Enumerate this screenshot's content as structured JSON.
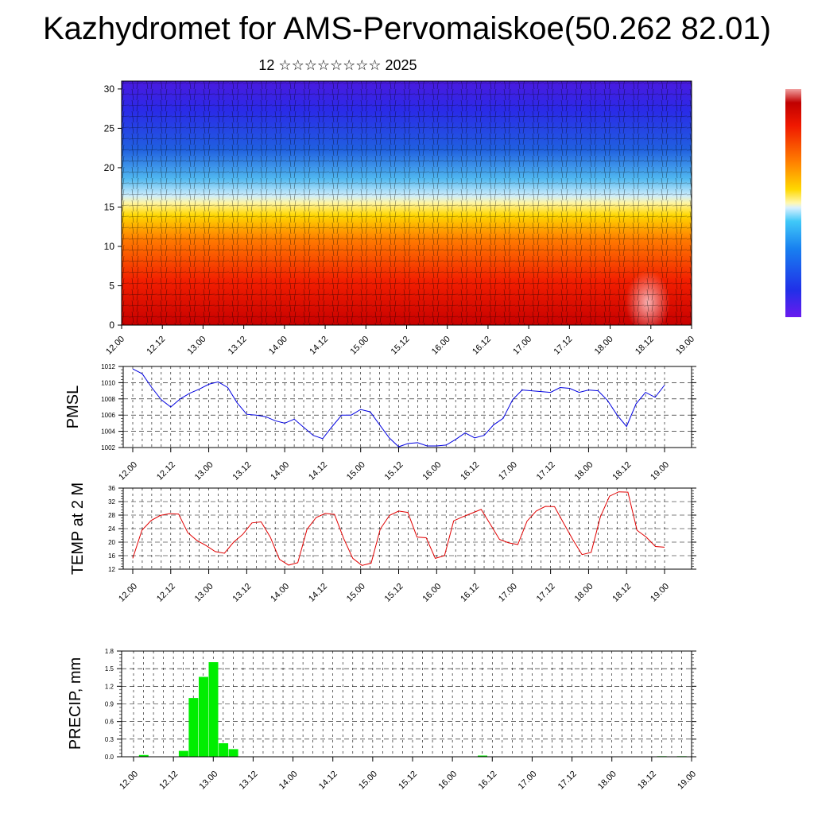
{
  "title": "Kazhydromet for AMS-Pervomaiskoe(50.262 82.01)",
  "subtitle": "12 ☆☆☆☆☆☆☆☆ 2025",
  "time_labels": [
    "12.00",
    "12.12",
    "13.00",
    "13.12",
    "14.00",
    "14.12",
    "15.00",
    "15.12",
    "16.00",
    "16.12",
    "17.00",
    "17.12",
    "18.00",
    "18.12",
    "19.00"
  ],
  "colors": {
    "pmsl_line": "#0000e0",
    "temp_line": "#e00000",
    "precip_bar": "#00ee00"
  },
  "chart_data": [
    {
      "type": "heatmap",
      "title": "",
      "xlabel": "",
      "ylabel": "",
      "x": [
        "12.00",
        "12.12",
        "13.00",
        "13.12",
        "14.00",
        "14.12",
        "15.00",
        "15.12",
        "16.00",
        "16.12",
        "17.00",
        "17.12",
        "18.00",
        "18.12",
        "19.00"
      ],
      "yticks": [
        0,
        5,
        10,
        15,
        20,
        25,
        30
      ],
      "ylim": [
        0,
        31
      ],
      "colorscale": "red-yellow-blue (warm at low levels, cold at high levels)",
      "overlay": "wind vectors"
    },
    {
      "type": "line",
      "ylabel": "PMSL",
      "ylim": [
        1002,
        1012
      ],
      "yticks": [
        1002,
        1004,
        1006,
        1008,
        1010,
        1012
      ],
      "x_labels": [
        "12.00",
        "12.12",
        "13.00",
        "13.12",
        "14.00",
        "14.12",
        "15.00",
        "15.12",
        "16.00",
        "16.12",
        "17.00",
        "17.12",
        "18.00",
        "18.12",
        "19.00"
      ],
      "series": [
        {
          "values": [
            1011.7,
            1011.1,
            1009.4,
            1007.9,
            1007.0,
            1008.0,
            1008.7,
            1009.2,
            1009.8,
            1010.1,
            1009.4,
            1007.5,
            1006.1,
            1006.0,
            1005.8,
            1005.3,
            1005.0,
            1005.5,
            1004.5,
            1003.5,
            1003.1,
            1004.6,
            1006.0,
            1006.0,
            1006.7,
            1006.4,
            1004.8,
            1003.2,
            1002.1,
            1002.5,
            1002.6,
            1002.2,
            1002.2,
            1002.3,
            1003.0,
            1003.8,
            1003.2,
            1003.5,
            1004.8,
            1005.6,
            1007.9,
            1009.1,
            1009.0,
            1008.9,
            1008.8,
            1009.4,
            1009.3,
            1008.8,
            1009.1,
            1009.0,
            1007.8,
            1006.0,
            1004.6,
            1007.4,
            1008.8,
            1008.2,
            1009.7
          ]
        }
      ]
    },
    {
      "type": "line",
      "ylabel": "TEMP at 2 M",
      "ylim": [
        12,
        36
      ],
      "yticks": [
        12,
        16,
        20,
        24,
        28,
        32,
        36
      ],
      "x_labels": [
        "12.00",
        "12.12",
        "13.00",
        "13.12",
        "14.00",
        "14.12",
        "15.00",
        "15.12",
        "16.00",
        "16.12",
        "17.00",
        "17.12",
        "18.00",
        "18.12",
        "19.00"
      ],
      "series": [
        {
          "values": [
            15.2,
            23.5,
            26.4,
            27.9,
            28.4,
            28.3,
            22.8,
            20.5,
            19.0,
            17.2,
            16.7,
            20.0,
            22.3,
            25.7,
            26.0,
            21.5,
            14.9,
            13.2,
            13.9,
            23.8,
            27.3,
            28.5,
            28.2,
            21.1,
            15.2,
            13.1,
            13.8,
            23.9,
            27.9,
            29.2,
            28.8,
            21.5,
            21.3,
            15.2,
            16.0,
            26.3,
            27.5,
            28.6,
            29.7,
            25.3,
            20.8,
            19.8,
            19.3,
            26.2,
            29.2,
            30.6,
            30.5,
            25.6,
            20.7,
            16.3,
            17.0,
            27.5,
            33.6,
            34.9,
            34.8,
            23.5,
            21.5,
            18.7,
            18.5
          ]
        }
      ]
    },
    {
      "type": "bar",
      "ylabel": "PRECIP, mm",
      "ylim": [
        0,
        1.8
      ],
      "yticks": [
        "0.0",
        "0.3",
        "0.6",
        "0.9",
        "1.2",
        "1.5",
        "1.8"
      ],
      "x_labels": [
        "12.00",
        "12.12",
        "13.00",
        "13.12",
        "14.00",
        "14.12",
        "15.00",
        "15.12",
        "16.00",
        "16.12",
        "17.00",
        "17.12",
        "18.00",
        "18.12",
        "19.00"
      ],
      "bars": [
        {
          "x": 1.0,
          "value": 0.03
        },
        {
          "x": 5.0,
          "value": 0.1
        },
        {
          "x": 6.0,
          "value": 1.0
        },
        {
          "x": 7.0,
          "value": 1.36
        },
        {
          "x": 8.0,
          "value": 1.61
        },
        {
          "x": 9.0,
          "value": 0.23
        },
        {
          "x": 10.0,
          "value": 0.13
        },
        {
          "x": 35.0,
          "value": 0.02
        },
        {
          "x": 53.0,
          "value": 0.01
        },
        {
          "x": 55.0,
          "value": 0.01
        }
      ]
    }
  ]
}
